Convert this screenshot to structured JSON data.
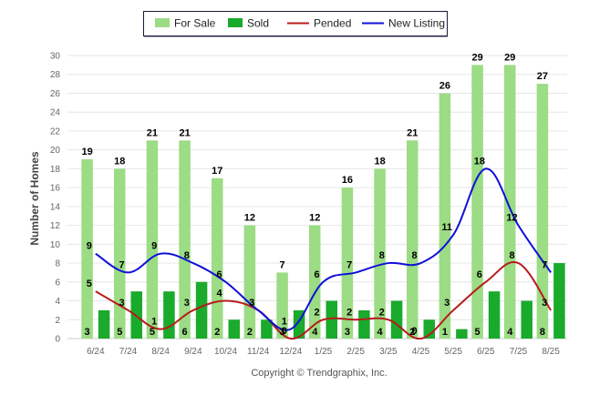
{
  "chart_data": {
    "type": "bar",
    "categories": [
      "6/24",
      "7/24",
      "8/24",
      "9/24",
      "10/24",
      "11/24",
      "12/24",
      "1/25",
      "2/25",
      "3/25",
      "4/25",
      "5/25",
      "6/25",
      "7/25",
      "8/25"
    ],
    "ylabel": "Number of Homes",
    "xlabel": "",
    "ylim": [
      0,
      30
    ],
    "yticks": [
      0,
      2,
      4,
      6,
      8,
      10,
      12,
      14,
      16,
      18,
      20,
      22,
      24,
      26,
      28,
      30
    ],
    "grid": true,
    "legend_position": "top-center",
    "series": [
      {
        "name": "For Sale",
        "kind": "bar",
        "color": "#9bdc84",
        "values": [
          19,
          18,
          21,
          21,
          17,
          12,
          7,
          12,
          16,
          18,
          21,
          26,
          29,
          29,
          27
        ]
      },
      {
        "name": "Sold",
        "kind": "bar",
        "color": "#1aaa2c",
        "values": [
          3,
          5,
          5,
          6,
          2,
          2,
          3,
          4,
          3,
          4,
          2,
          1,
          5,
          4,
          8
        ]
      },
      {
        "name": "Pended",
        "kind": "line",
        "color": "#b71c1c",
        "values": [
          5,
          3,
          1,
          3,
          4,
          3,
          0,
          2,
          2,
          2,
          0,
          3,
          6,
          8,
          3
        ]
      },
      {
        "name": "New Listing",
        "kind": "line",
        "color": "#1010d8",
        "values": [
          9,
          7,
          9,
          8,
          6,
          3,
          1,
          6,
          7,
          8,
          8,
          11,
          18,
          12,
          7
        ]
      }
    ],
    "footer": "Copyright © Trendgraphix, Inc."
  }
}
